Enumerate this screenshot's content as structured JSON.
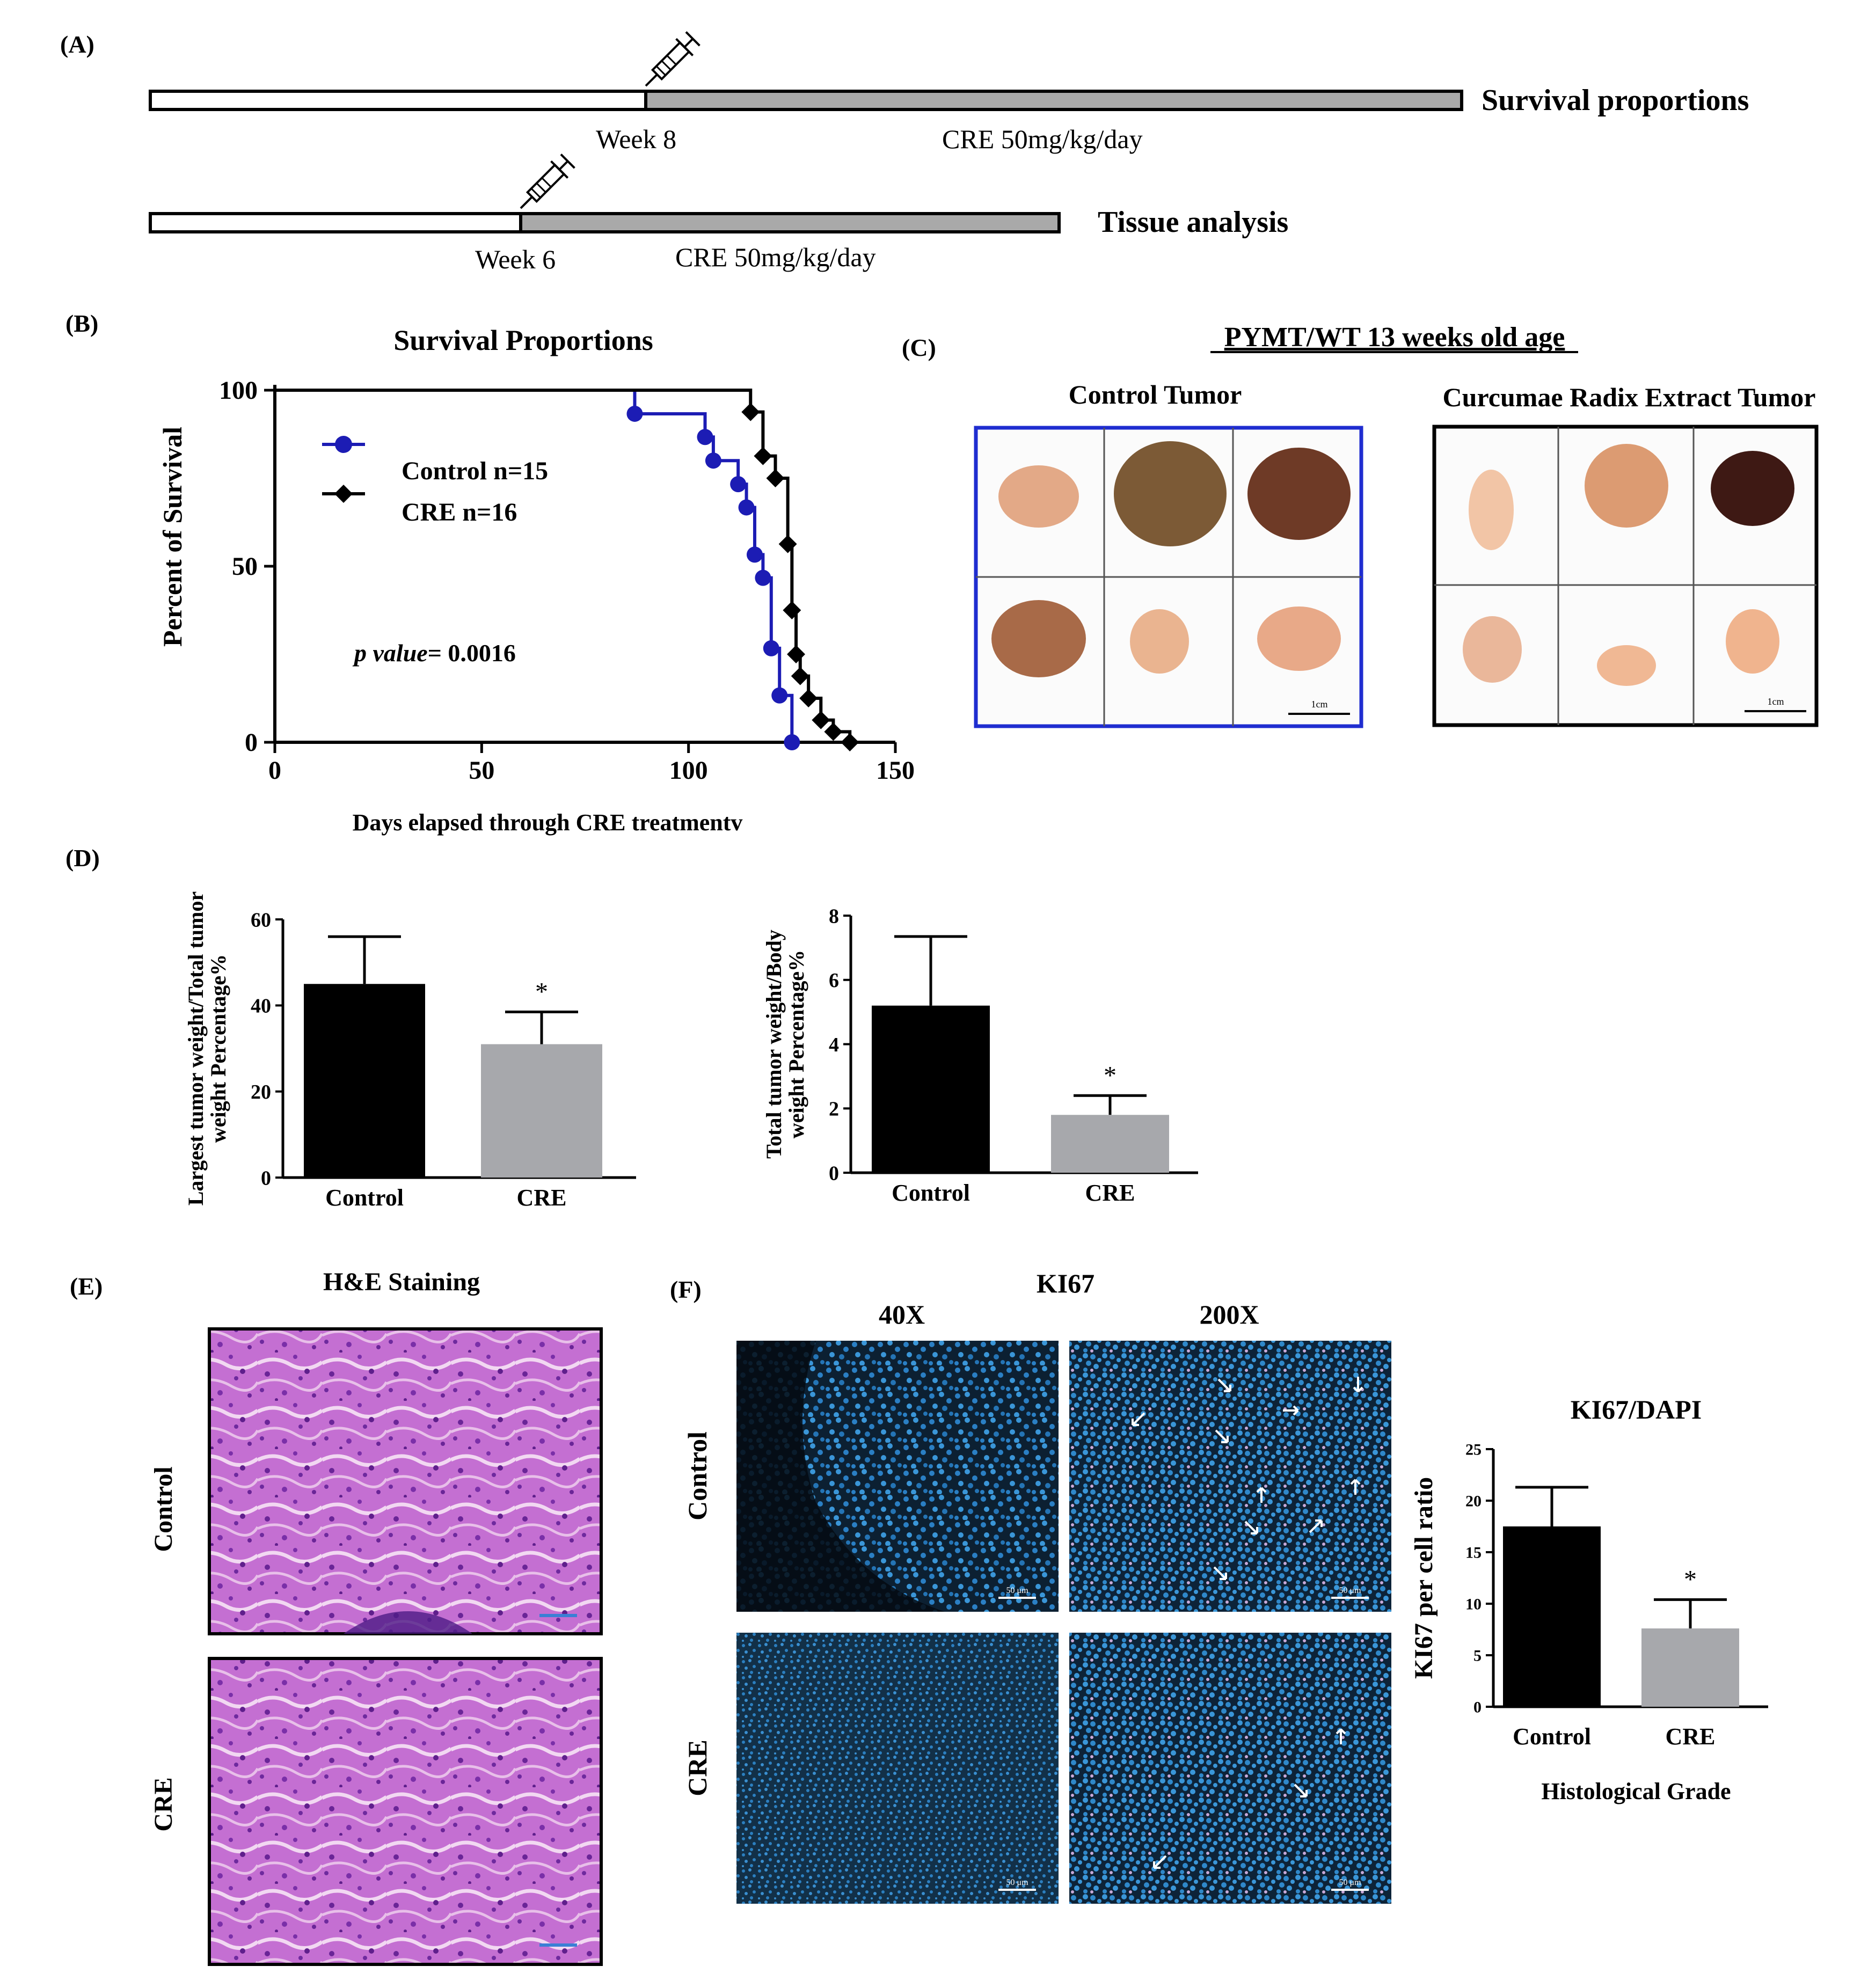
{
  "panelA": {
    "label": "(A)",
    "bar1": {
      "week": "Week 8",
      "treatment": "CRE 50mg/kg/day",
      "title": "Survival proportions"
    },
    "bar2": {
      "week": "Week 6",
      "treatment": "CRE 50mg/kg/day",
      "title": "Tissue analysis"
    }
  },
  "panelB": {
    "label": "(B)",
    "title": "Survival Proportions",
    "ylabel": "Percent of Survival",
    "xlabel": "Days elapsed through CRE treatmentv",
    "pvalue_italic": "p value",
    "pvalue_rest": "= 0.0016",
    "legend": [
      "Control n=15",
      "CRE n=16"
    ]
  },
  "panelC": {
    "label": "(C)",
    "title": "PYMT/WT 13 weeks old age",
    "left_title": "Control Tumor",
    "right_title": "Curcumae Radix Extract Tumor",
    "scale_label": "1cm"
  },
  "panelD": {
    "label": "(D)"
  },
  "panelE": {
    "label": "(E)",
    "title": "H&E Staining",
    "row1": "Control",
    "row2": "CRE"
  },
  "panelF": {
    "label": "(F)",
    "title": "KI67",
    "col1": "40X",
    "col2": "200X",
    "row1": "Control",
    "row2": "CRE",
    "scale_label": "50 μm"
  },
  "colors": {
    "control_curve": "#1c1cb4",
    "cre_curve": "#000000",
    "control_bar": "#000000",
    "cre_bar": "#a7a8ac",
    "control_frame": "#1f2dd0"
  },
  "chart_data": [
    {
      "type": "line",
      "name": "Kaplan-Meier survival curve",
      "title": "Survival Proportions",
      "xlabel": "Days elapsed through CRE treatmentv",
      "ylabel": "Percent of Survival",
      "xlim": [
        0,
        150
      ],
      "ylim": [
        0,
        100
      ],
      "xticks": [
        0,
        50,
        100,
        150
      ],
      "yticks": [
        0,
        50,
        100
      ],
      "series": [
        {
          "name": "Control n=15",
          "x": [
            0,
            87,
            104,
            106,
            112,
            114,
            116,
            118,
            120,
            122,
            125
          ],
          "y": [
            100,
            93.3,
            86.7,
            80.0,
            73.3,
            66.7,
            53.3,
            46.7,
            26.7,
            13.3,
            0
          ]
        },
        {
          "name": "CRE n=16",
          "x": [
            0,
            115,
            118,
            121,
            124,
            125,
            126,
            127,
            129,
            132,
            135,
            139
          ],
          "y": [
            100,
            93.8,
            81.3,
            75.0,
            56.3,
            37.5,
            25.0,
            18.8,
            12.5,
            6.3,
            3.0,
            0
          ]
        }
      ],
      "annotation": "p value= 0.0016"
    },
    {
      "type": "bar",
      "ylabel": "Largest tumor weight/Total tumor weight Percentage%",
      "categories": [
        "Control",
        "CRE"
      ],
      "values": [
        45,
        31
      ],
      "errors": [
        11,
        7.5
      ],
      "ylim": [
        0,
        60
      ],
      "yticks": [
        0,
        20,
        40,
        60
      ],
      "significance": [
        "",
        "*"
      ]
    },
    {
      "type": "bar",
      "ylabel": "Total tumor weight/Body weight Percentage%",
      "categories": [
        "Control",
        "CRE"
      ],
      "values": [
        5.2,
        1.8
      ],
      "errors": [
        2.15,
        0.6
      ],
      "ylim": [
        0,
        8
      ],
      "yticks": [
        0,
        2,
        4,
        6,
        8
      ],
      "significance": [
        "",
        "*"
      ]
    },
    {
      "type": "bar",
      "title": "KI67/DAPI",
      "ylabel": "KI67 per cell ratio",
      "xlabel": "Histological Grade",
      "categories": [
        "Control",
        "CRE"
      ],
      "values": [
        17.5,
        7.6
      ],
      "errors": [
        3.8,
        2.8
      ],
      "ylim": [
        0,
        25
      ],
      "yticks": [
        0,
        5,
        10,
        15,
        20,
        25
      ],
      "significance": [
        "",
        "*"
      ]
    }
  ]
}
